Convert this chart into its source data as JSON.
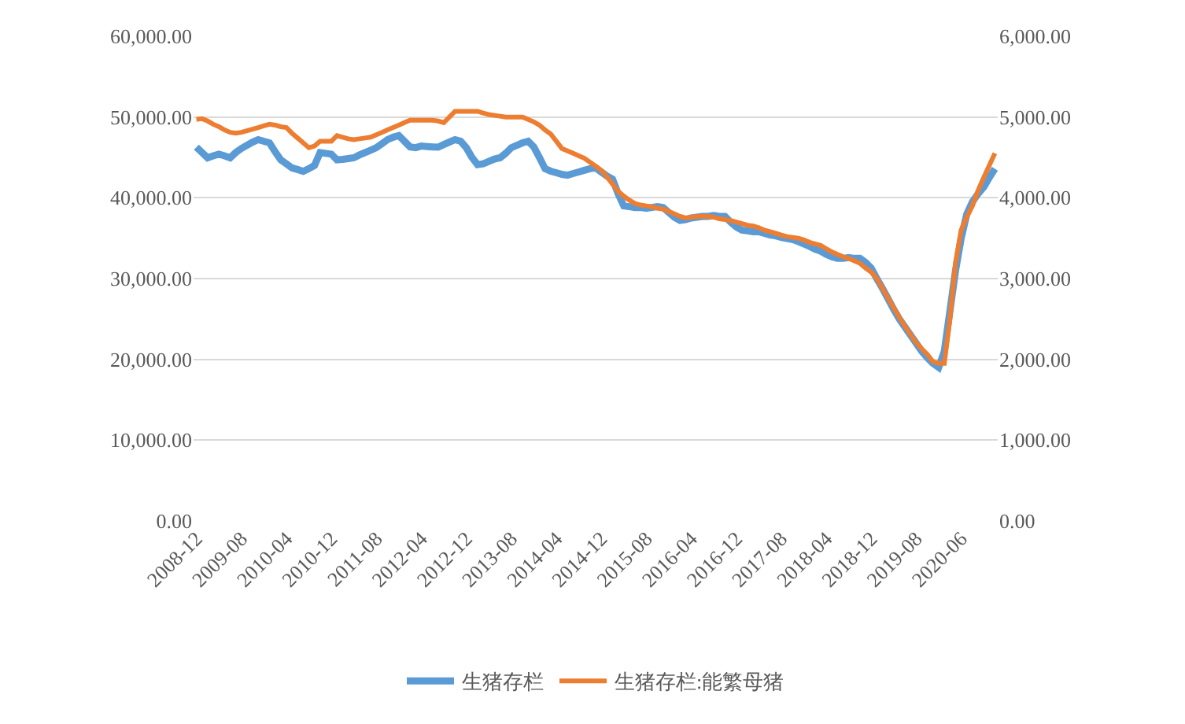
{
  "chart_data": {
    "type": "line",
    "categories": [
      "2008-12",
      null,
      null,
      null,
      null,
      null,
      null,
      null,
      "2009-08",
      null,
      null,
      null,
      null,
      null,
      null,
      null,
      "2010-04",
      null,
      null,
      null,
      null,
      null,
      null,
      null,
      "2010-12",
      null,
      null,
      null,
      null,
      null,
      null,
      null,
      "2011-08",
      null,
      null,
      null,
      null,
      null,
      null,
      null,
      "2012-04",
      null,
      null,
      null,
      null,
      null,
      null,
      null,
      "2012-12",
      null,
      null,
      null,
      null,
      null,
      null,
      null,
      "2013-08",
      null,
      null,
      null,
      null,
      null,
      null,
      null,
      "2014-04",
      null,
      null,
      null,
      null,
      null,
      null,
      null,
      "2014-12",
      null,
      null,
      null,
      null,
      null,
      null,
      null,
      "2015-08",
      null,
      null,
      null,
      null,
      null,
      null,
      null,
      "2016-04",
      null,
      null,
      null,
      null,
      null,
      null,
      null,
      "2016-12",
      null,
      null,
      null,
      null,
      null,
      null,
      null,
      "2017-08",
      null,
      null,
      null,
      null,
      null,
      null,
      null,
      "2018-04",
      null,
      null,
      null,
      null,
      null,
      null,
      null,
      "2018-12",
      null,
      null,
      null,
      null,
      null,
      null,
      null,
      "2019-08",
      null,
      null,
      null,
      null,
      null,
      null,
      null,
      "2020-06",
      null,
      null,
      null,
      null,
      null,
      null
    ],
    "series": [
      {
        "name": "生猪存栏",
        "color": "#5b9bd5",
        "values": [
          46260,
          45600,
          44950,
          45200,
          45400,
          45200,
          44950,
          45600,
          46100,
          46500,
          46900,
          47200,
          47000,
          46800,
          45700,
          44700,
          44200,
          43700,
          43500,
          43270,
          43600,
          44000,
          45600,
          45500,
          45400,
          44700,
          44750,
          44850,
          44950,
          45300,
          45600,
          45900,
          46200,
          46700,
          47200,
          47500,
          47700,
          47000,
          46300,
          46200,
          46400,
          46350,
          46300,
          46260,
          46600,
          46900,
          47200,
          47000,
          46200,
          45000,
          44100,
          44200,
          44500,
          44800,
          44950,
          45500,
          46200,
          46500,
          46800,
          47000,
          46300,
          45000,
          43600,
          43300,
          43100,
          42900,
          42800,
          43000,
          43200,
          43400,
          43600,
          43700,
          43200,
          42700,
          42300,
          40500,
          39000,
          38900,
          38800,
          38800,
          38700,
          38800,
          38900,
          38800,
          38200,
          37600,
          37200,
          37300,
          37500,
          37600,
          37700,
          37700,
          37800,
          37700,
          37700,
          37000,
          36400,
          36000,
          35900,
          35800,
          35800,
          35600,
          35400,
          35300,
          35100,
          34950,
          34850,
          34600,
          34300,
          34000,
          33640,
          33400,
          33000,
          32700,
          32500,
          32500,
          32600,
          32500,
          32500,
          32000,
          31300,
          30000,
          28800,
          27500,
          26200,
          25000,
          24000,
          23000,
          22000,
          21000,
          20200,
          19500,
          19000,
          21000,
          26000,
          31000,
          35000,
          38000,
          39500,
          40500,
          41300,
          42500,
          43600
        ]
      },
      {
        "name": "生猪存栏:能繁母猪",
        "color": "#ed7d31",
        "axis": "y2",
        "values": [
          4970,
          4980,
          4950,
          4910,
          4880,
          4840,
          4810,
          4800,
          4810,
          4830,
          4850,
          4870,
          4890,
          4910,
          4900,
          4880,
          4870,
          4800,
          4740,
          4680,
          4620,
          4640,
          4700,
          4700,
          4700,
          4770,
          4750,
          4730,
          4720,
          4730,
          4740,
          4750,
          4780,
          4810,
          4840,
          4870,
          4900,
          4930,
          4960,
          4960,
          4960,
          4960,
          4960,
          4950,
          4930,
          5000,
          5070,
          5070,
          5070,
          5070,
          5070,
          5050,
          5030,
          5020,
          5010,
          5000,
          5000,
          5000,
          5000,
          4970,
          4940,
          4900,
          4840,
          4790,
          4700,
          4610,
          4580,
          4550,
          4520,
          4490,
          4440,
          4390,
          4340,
          4260,
          4170,
          4080,
          4020,
          3970,
          3930,
          3910,
          3900,
          3890,
          3870,
          3860,
          3830,
          3800,
          3770,
          3750,
          3760,
          3770,
          3770,
          3770,
          3760,
          3740,
          3730,
          3720,
          3700,
          3680,
          3660,
          3650,
          3630,
          3600,
          3580,
          3560,
          3540,
          3520,
          3510,
          3500,
          3480,
          3450,
          3430,
          3410,
          3370,
          3330,
          3300,
          3270,
          3250,
          3220,
          3190,
          3130,
          3080,
          3000,
          2880,
          2760,
          2640,
          2520,
          2410,
          2310,
          2210,
          2130,
          2060,
          1970,
          1950,
          1950,
          2500,
          3200,
          3600,
          3760,
          3900,
          4090,
          4250,
          4400,
          4550
        ]
      }
    ],
    "ylim": [
      0,
      60000
    ],
    "yticks": [
      {
        "value": 0,
        "label": "0.00"
      },
      {
        "value": 10000,
        "label": "10,000.00"
      },
      {
        "value": 20000,
        "label": "20,000.00"
      },
      {
        "value": 30000,
        "label": "30,000.00"
      },
      {
        "value": 40000,
        "label": "40,000.00"
      },
      {
        "value": 50000,
        "label": "50,000.00"
      },
      {
        "value": 60000,
        "label": "60,000.00"
      }
    ],
    "y2lim": [
      0,
      6000
    ],
    "y2ticks": [
      {
        "value": 0,
        "label": "0.00"
      },
      {
        "value": 1000,
        "label": "1,000.00"
      },
      {
        "value": 2000,
        "label": "2,000.00"
      },
      {
        "value": 3000,
        "label": "3,000.00"
      },
      {
        "value": 4000,
        "label": "4,000.00"
      },
      {
        "value": 5000,
        "label": "5,000.00"
      },
      {
        "value": 6000,
        "label": "6,000.00"
      }
    ],
    "grid": "y",
    "legend": "bottom",
    "marker": "none",
    "line_style": "solid"
  }
}
